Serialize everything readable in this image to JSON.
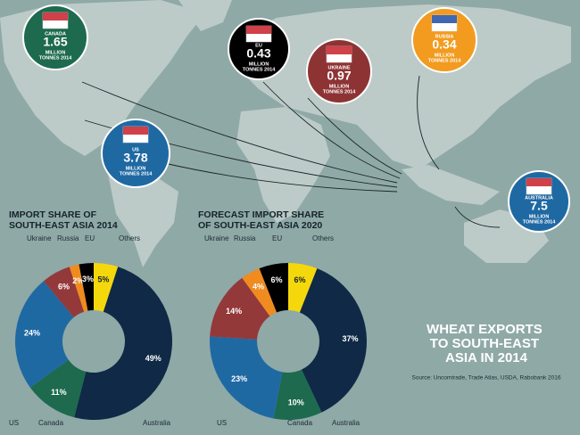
{
  "chart_data": [
    {
      "type": "pie",
      "donut": true,
      "title": [
        "IMPORT SHARE OF",
        "SOUTH-EAST ASIA 2014"
      ],
      "categories": [
        "Others",
        "Australia",
        "Canada",
        "US",
        "Ukraine",
        "Russia",
        "EU"
      ],
      "values": [
        5,
        49,
        11,
        24,
        6,
        2,
        3
      ],
      "value_labels": [
        "5%",
        "49%",
        "11%",
        "24%",
        "6%",
        "2%",
        "3%"
      ],
      "colors": [
        "#f4d80c",
        "#0f2946",
        "#1d6a4e",
        "#1f69a3",
        "#94393a",
        "#f08b1f",
        "#000000"
      ]
    },
    {
      "type": "pie",
      "donut": true,
      "title": [
        "FORECAST IMPORT SHARE",
        "OF SOUTH-EAST ASIA 2020"
      ],
      "categories": [
        "Others",
        "Australia",
        "Canada",
        "US",
        "Ukraine",
        "Russia",
        "EU"
      ],
      "values": [
        6,
        37,
        10,
        23,
        14,
        4,
        6
      ],
      "value_labels": [
        "6%",
        "37%",
        "10%",
        "23%",
        "14%",
        "4%",
        "6%"
      ],
      "colors": [
        "#f4d80c",
        "#0f2946",
        "#1d6a4e",
        "#1f69a3",
        "#94393a",
        "#f08b1f",
        "#000000"
      ]
    }
  ],
  "export_bubbles": [
    {
      "country": "CANADA",
      "value": 1.65,
      "unit": [
        "MILLION",
        "TONNES 2014"
      ],
      "color": "#1d6a4e"
    },
    {
      "country": "EU",
      "value": 0.43,
      "unit": [
        "MILLION",
        "TONNES 2014"
      ],
      "color": "#000000"
    },
    {
      "country": "UKRAINE",
      "value": 0.97,
      "unit": [
        "MILLION",
        "TONNES 2014"
      ],
      "color": "#8e3334"
    },
    {
      "country": "RUSSIA",
      "value": 0.34,
      "unit": [
        "MILLION",
        "TONNES 2014"
      ],
      "color": "#f29b1f"
    },
    {
      "country": "US",
      "value": 3.78,
      "unit": [
        "MILLION",
        "TONNES 2014"
      ],
      "color": "#1f69a3"
    },
    {
      "country": "AUSTRALIA",
      "value": 7.5,
      "unit": [
        "MILLION",
        "TONNES 2014"
      ],
      "color": "#1f69a3"
    }
  ],
  "heading": [
    "WHEAT EXPORTS",
    "TO SOUTH-EAST",
    "ASIA IN 2014"
  ],
  "source": "Source: Uncomtrade, Trade Atlas, USDA, Rabobank 2016"
}
